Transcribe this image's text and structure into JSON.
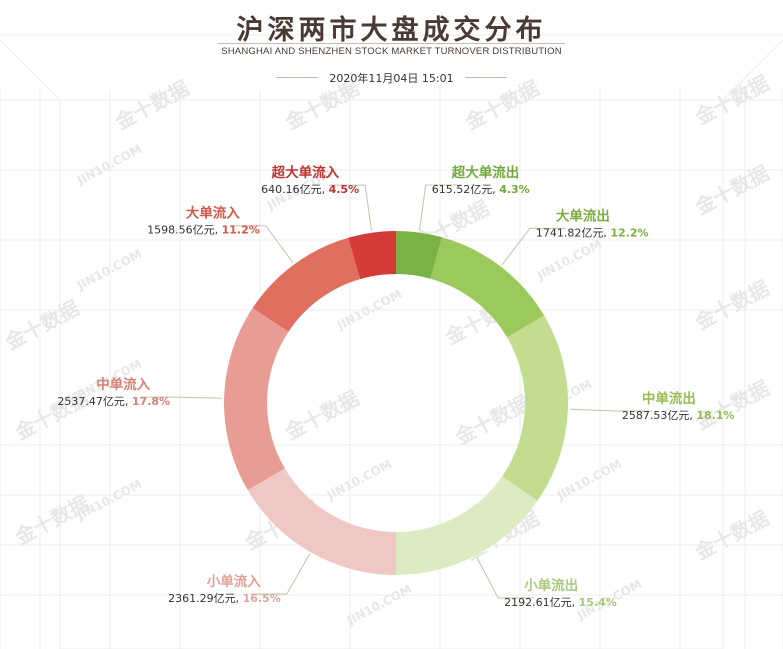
{
  "header": {
    "title": "沪深两市大盘成交分布",
    "subtitle": "SHANGHAI AND SHENZHEN STOCK MARKET TURNOVER DISTRIBUTION",
    "datetime": "2020年11月04日 15:01"
  },
  "watermarks": [
    "金十数据",
    "JIN10.COM"
  ],
  "chart_data": {
    "type": "pie",
    "donut": true,
    "unit": "亿元",
    "slices": [
      {
        "name": "超大单流出",
        "value": 615.52,
        "percent": "4.3%",
        "color": "#7bb246",
        "text_color": "#6ea83a"
      },
      {
        "name": "大单流出",
        "value": 1741.82,
        "percent": "12.2%",
        "color": "#9cc95c",
        "text_color": "#7dae3f"
      },
      {
        "name": "中单流出",
        "value": 2587.53,
        "percent": "18.1%",
        "color": "#c2dd8f",
        "text_color": "#97bd52"
      },
      {
        "name": "小单流出",
        "value": 2192.61,
        "percent": "15.4%",
        "color": "#ddebc3",
        "text_color": "#a9c97d"
      },
      {
        "name": "小单流入",
        "value": 2361.29,
        "percent": "16.5%",
        "color": "#f0c8c3",
        "text_color": "#e2a29b"
      },
      {
        "name": "中单流入",
        "value": 2537.47,
        "percent": "17.8%",
        "color": "#e89c93",
        "text_color": "#d97f75"
      },
      {
        "name": "大单流入",
        "value": 1598.56,
        "percent": "11.2%",
        "color": "#e06f60",
        "text_color": "#d4574a"
      },
      {
        "name": "超大单流入",
        "value": 640.16,
        "percent": "4.5%",
        "color": "#d43a38",
        "text_color": "#c22f2d"
      }
    ]
  }
}
